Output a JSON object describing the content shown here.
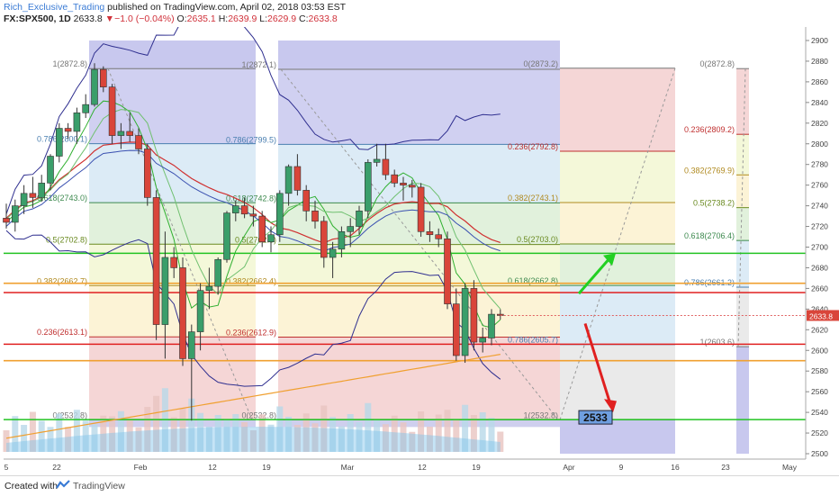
{
  "header": {
    "author": "Rich_Exclusive_Trading",
    "published": "published on TradingView.com, April 02, 2018 03:53 EST",
    "symbol": "FX:SPX500, 1D",
    "last": "2633.8",
    "change": "−1.0 (−0.04%)",
    "open_label": "O:",
    "open": "2635.1",
    "high_label": "H:",
    "high": "2639.9",
    "low_label": "L:",
    "low": "2629.9",
    "close_label": "C:",
    "close": "2633.8"
  },
  "footer": {
    "created_with": "Created with",
    "brand": "TradingView"
  },
  "chart_data": {
    "type": "candlestick",
    "y_axis": {
      "min": 2500,
      "max": 2900,
      "ticks": [
        2500,
        2520,
        2540,
        2560,
        2580,
        2600,
        2620,
        2640,
        2660,
        2680,
        2700,
        2720,
        2740,
        2760,
        2780,
        2800,
        2820,
        2840,
        2860,
        2880,
        2900
      ]
    },
    "x_axis_labels": [
      "5",
      "22",
      "Feb",
      "12",
      "19",
      "Mar",
      "12",
      "19",
      "Apr",
      "9",
      "16",
      "23",
      "May"
    ],
    "candles": [
      {
        "o": 2728,
        "h": 2742,
        "l": 2718,
        "c": 2724
      },
      {
        "o": 2724,
        "h": 2746,
        "l": 2715,
        "c": 2740
      },
      {
        "o": 2740,
        "h": 2760,
        "l": 2732,
        "c": 2752
      },
      {
        "o": 2752,
        "h": 2768,
        "l": 2738,
        "c": 2748
      },
      {
        "o": 2748,
        "h": 2770,
        "l": 2744,
        "c": 2762
      },
      {
        "o": 2762,
        "h": 2790,
        "l": 2755,
        "c": 2788
      },
      {
        "o": 2788,
        "h": 2820,
        "l": 2782,
        "c": 2815
      },
      {
        "o": 2815,
        "h": 2820,
        "l": 2805,
        "c": 2812
      },
      {
        "o": 2812,
        "h": 2835,
        "l": 2800,
        "c": 2830
      },
      {
        "o": 2830,
        "h": 2848,
        "l": 2825,
        "c": 2838
      },
      {
        "o": 2838,
        "h": 2878,
        "l": 2836,
        "c": 2872
      },
      {
        "o": 2872,
        "h": 2875,
        "l": 2850,
        "c": 2855
      },
      {
        "o": 2855,
        "h": 2858,
        "l": 2800,
        "c": 2808
      },
      {
        "o": 2808,
        "h": 2820,
        "l": 2795,
        "c": 2812
      },
      {
        "o": 2812,
        "h": 2830,
        "l": 2802,
        "c": 2808
      },
      {
        "o": 2808,
        "h": 2815,
        "l": 2790,
        "c": 2795
      },
      {
        "o": 2795,
        "h": 2800,
        "l": 2740,
        "c": 2748
      },
      {
        "o": 2748,
        "h": 2755,
        "l": 2610,
        "c": 2625
      },
      {
        "o": 2625,
        "h": 2715,
        "l": 2592,
        "c": 2690
      },
      {
        "o": 2690,
        "h": 2700,
        "l": 2670,
        "c": 2680
      },
      {
        "o": 2680,
        "h": 2690,
        "l": 2585,
        "c": 2592
      },
      {
        "o": 2592,
        "h": 2625,
        "l": 2532,
        "c": 2618
      },
      {
        "o": 2618,
        "h": 2665,
        "l": 2600,
        "c": 2658
      },
      {
        "o": 2658,
        "h": 2680,
        "l": 2640,
        "c": 2662
      },
      {
        "o": 2662,
        "h": 2690,
        "l": 2654,
        "c": 2688
      },
      {
        "o": 2688,
        "h": 2735,
        "l": 2685,
        "c": 2733
      },
      {
        "o": 2733,
        "h": 2745,
        "l": 2725,
        "c": 2740
      },
      {
        "o": 2740,
        "h": 2748,
        "l": 2728,
        "c": 2732
      },
      {
        "o": 2732,
        "h": 2740,
        "l": 2720,
        "c": 2730
      },
      {
        "o": 2730,
        "h": 2735,
        "l": 2700,
        "c": 2705
      },
      {
        "o": 2705,
        "h": 2720,
        "l": 2695,
        "c": 2712
      },
      {
        "o": 2712,
        "h": 2755,
        "l": 2705,
        "c": 2752
      },
      {
        "o": 2752,
        "h": 2780,
        "l": 2740,
        "c": 2778
      },
      {
        "o": 2778,
        "h": 2790,
        "l": 2750,
        "c": 2755
      },
      {
        "o": 2755,
        "h": 2760,
        "l": 2725,
        "c": 2735
      },
      {
        "o": 2735,
        "h": 2745,
        "l": 2718,
        "c": 2725
      },
      {
        "o": 2725,
        "h": 2730,
        "l": 2680,
        "c": 2690
      },
      {
        "o": 2690,
        "h": 2705,
        "l": 2670,
        "c": 2698
      },
      {
        "o": 2698,
        "h": 2720,
        "l": 2690,
        "c": 2715
      },
      {
        "o": 2715,
        "h": 2728,
        "l": 2700,
        "c": 2720
      },
      {
        "o": 2720,
        "h": 2740,
        "l": 2712,
        "c": 2735
      },
      {
        "o": 2735,
        "h": 2785,
        "l": 2728,
        "c": 2782
      },
      {
        "o": 2782,
        "h": 2800,
        "l": 2778,
        "c": 2785
      },
      {
        "o": 2785,
        "h": 2800,
        "l": 2765,
        "c": 2770
      },
      {
        "o": 2770,
        "h": 2775,
        "l": 2758,
        "c": 2762
      },
      {
        "o": 2762,
        "h": 2768,
        "l": 2745,
        "c": 2760
      },
      {
        "o": 2760,
        "h": 2765,
        "l": 2748,
        "c": 2758
      },
      {
        "o": 2758,
        "h": 2762,
        "l": 2710,
        "c": 2715
      },
      {
        "o": 2715,
        "h": 2725,
        "l": 2705,
        "c": 2712
      },
      {
        "o": 2712,
        "h": 2718,
        "l": 2700,
        "c": 2708
      },
      {
        "o": 2708,
        "h": 2715,
        "l": 2640,
        "c": 2645
      },
      {
        "o": 2645,
        "h": 2660,
        "l": 2590,
        "c": 2595
      },
      {
        "o": 2595,
        "h": 2665,
        "l": 2588,
        "c": 2660
      },
      {
        "o": 2660,
        "h": 2668,
        "l": 2600,
        "c": 2608
      },
      {
        "o": 2608,
        "h": 2622,
        "l": 2598,
        "c": 2612
      },
      {
        "o": 2612,
        "h": 2640,
        "l": 2605,
        "c": 2635
      },
      {
        "o": 2635,
        "h": 2639.9,
        "l": 2629.9,
        "c": 2633.8
      }
    ],
    "fib_retracement_1": {
      "levels": [
        {
          "ratio": "1",
          "price": "2872.8"
        },
        {
          "ratio": "0.786",
          "price": "2800.1"
        },
        {
          "ratio": "0.618",
          "price": "2743.0"
        },
        {
          "ratio": "0.5",
          "price": "2702.8"
        },
        {
          "ratio": "0.382",
          "price": "2662.7"
        },
        {
          "ratio": "0.236",
          "price": "2613.1"
        },
        {
          "ratio": "0",
          "price": "2532.8"
        }
      ]
    },
    "fib_retracement_2": {
      "levels": [
        {
          "ratio": "1",
          "price": "2872.1"
        },
        {
          "ratio": "0.786",
          "price": "2799.5"
        },
        {
          "ratio": "0.618",
          "price": "2742.8"
        },
        {
          "ratio": "0.5",
          "price": "2702.5"
        },
        {
          "ratio": "0.382",
          "price": "2662.4"
        },
        {
          "ratio": "0.236",
          "price": "2612.9"
        },
        {
          "ratio": "0",
          "price": "2532.8"
        }
      ]
    },
    "fib_retracement_3": {
      "levels": [
        {
          "ratio": "0",
          "price": "2873.2"
        },
        {
          "ratio": "0.236",
          "price": "2792.8"
        },
        {
          "ratio": "0.382",
          "price": "2743.1"
        },
        {
          "ratio": "0.5",
          "price": "2703.0"
        },
        {
          "ratio": "0.618",
          "price": "2662.8"
        },
        {
          "ratio": "0.786",
          "price": "2605.7"
        },
        {
          "ratio": "1",
          "price": "2532.8"
        }
      ]
    },
    "fib_retracement_4": {
      "levels": [
        {
          "ratio": "0",
          "price": "2872.8"
        },
        {
          "ratio": "0.236",
          "price": "2809.2"
        },
        {
          "ratio": "0.382",
          "price": "2769.9"
        },
        {
          "ratio": "0.5",
          "price": "2738.2"
        },
        {
          "ratio": "0.618",
          "price": "2706.4"
        },
        {
          "ratio": "0.786",
          "price": "2661.2"
        },
        {
          "ratio": "1",
          "price": "2603.6"
        }
      ]
    },
    "horizontal_lines": [
      {
        "price": 2694,
        "color": "#22c322"
      },
      {
        "price": 2665,
        "color": "#f0a030"
      },
      {
        "price": 2656,
        "color": "#e02020"
      },
      {
        "price": 2606,
        "color": "#e02020"
      },
      {
        "price": 2590,
        "color": "#f0a030"
      },
      {
        "price": 2533,
        "color": "#22c322"
      }
    ],
    "target_label": "2533",
    "last_price_label": "2633.8",
    "colors": {
      "up": "#3a9e6a",
      "down": "#d9453a",
      "green_arrow": "#22d022",
      "red_arrow": "#e02020"
    }
  }
}
